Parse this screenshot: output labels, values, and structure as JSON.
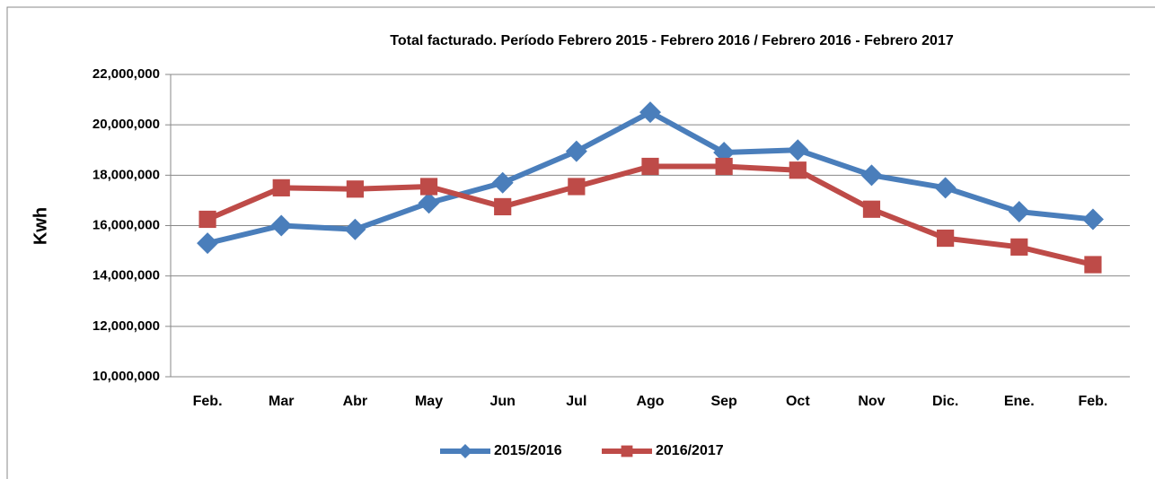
{
  "chart_data": {
    "type": "line",
    "title": "Total facturado. Período Febrero 2015 - Febrero 2016 / Febrero 2016 - Febrero 2017",
    "y_label": "Kwh",
    "categories": [
      "Feb.",
      "Mar",
      "Abr",
      "May",
      "Jun",
      "Jul",
      "Ago",
      "Sep",
      "Oct",
      "Nov",
      "Dic.",
      "Ene.",
      "Feb."
    ],
    "series": [
      {
        "name": "2015/2016",
        "color": "#4a7ebb",
        "marker": "diamond",
        "values": [
          15300000,
          16000000,
          15850000,
          16900000,
          17700000,
          18950000,
          20500000,
          18900000,
          19000000,
          18000000,
          17500000,
          16550000,
          16250000
        ]
      },
      {
        "name": "2016/2017",
        "color": "#be4b48",
        "marker": "square",
        "values": [
          16250000,
          17500000,
          17450000,
          17550000,
          16750000,
          17550000,
          18350000,
          18350000,
          18200000,
          16650000,
          15500000,
          15150000,
          14450000
        ]
      }
    ],
    "ylim": [
      10000000,
      22000000
    ],
    "yticks": [
      {
        "value": 10000000,
        "label": "10,000,000"
      },
      {
        "value": 12000000,
        "label": "12,000,000"
      },
      {
        "value": 14000000,
        "label": "14,000,000"
      },
      {
        "value": 16000000,
        "label": "16,000,000"
      },
      {
        "value": 18000000,
        "label": "18,000,000"
      },
      {
        "value": 20000000,
        "label": "20,000,000"
      },
      {
        "value": 22000000,
        "label": "22,000,000"
      }
    ],
    "grid": true,
    "legend": "bottom"
  }
}
